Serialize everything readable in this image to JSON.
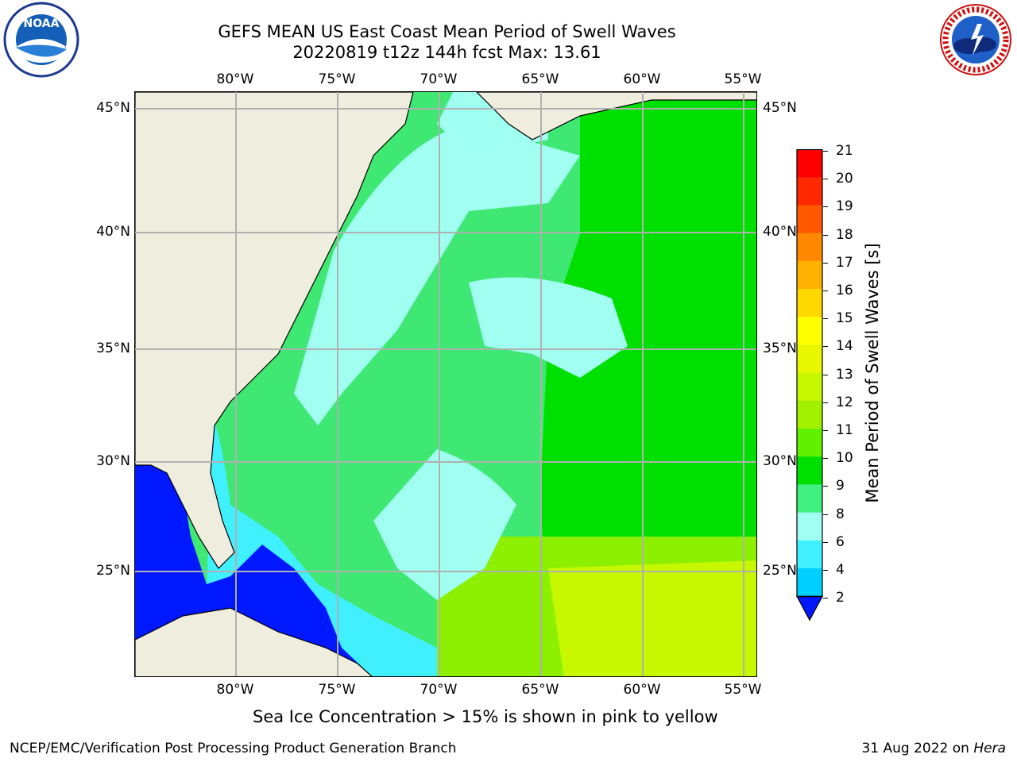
{
  "header": {
    "title_line1": "GEFS MEAN US East Coast Mean Period of Swell Waves",
    "title_line2": "20220819 t12z 144h fcst   Max: 13.61"
  },
  "logos": {
    "left": {
      "text": "NOAA",
      "ring_text": "NATIONAL OCEANIC AND ATMOSPHERIC ADMINISTRATION · U.S. DEPARTMENT OF COMMERCE"
    },
    "right": {
      "ring_text": "NATIONAL WEATHER SERVICE"
    }
  },
  "map": {
    "lon_ticks": [
      "80°W",
      "75°W",
      "70°W",
      "65°W",
      "60°W",
      "55°W"
    ],
    "lat_ticks_left": [
      "45°N",
      "40°N",
      "35°N",
      "30°N",
      "25°N"
    ],
    "lat_ticks_right": [
      "45°N",
      "40°N",
      "35°N",
      "30°N",
      "25°N"
    ],
    "land_color": "#efedde",
    "grid_color": "#b0b0b0"
  },
  "colorbar": {
    "label": "Mean Period of Swell Waves [s]",
    "ticks": [
      "2",
      "4",
      "6",
      "8",
      "9",
      "10",
      "11",
      "12",
      "13",
      "14",
      "15",
      "16",
      "17",
      "18",
      "19",
      "20",
      "21"
    ],
    "colors": [
      "#0a78ff",
      "#00d0ff",
      "#40f0ff",
      "#a0fff0",
      "#40f080",
      "#00e000",
      "#60f000",
      "#a0f000",
      "#c8f800",
      "#e8f800",
      "#ffff00",
      "#ffd800",
      "#ffb000",
      "#ff8800",
      "#ff5800",
      "#ff2800",
      "#ff0000"
    ],
    "under_color": "#0018ff"
  },
  "note": "Sea Ice Concentration > 15% is shown in pink to yellow",
  "footer": {
    "left": "NCEP/EMC/Verification Post Processing Product Generation Branch",
    "right_prefix": "31 Aug 2022 on",
    "right_machine": "Hera"
  }
}
